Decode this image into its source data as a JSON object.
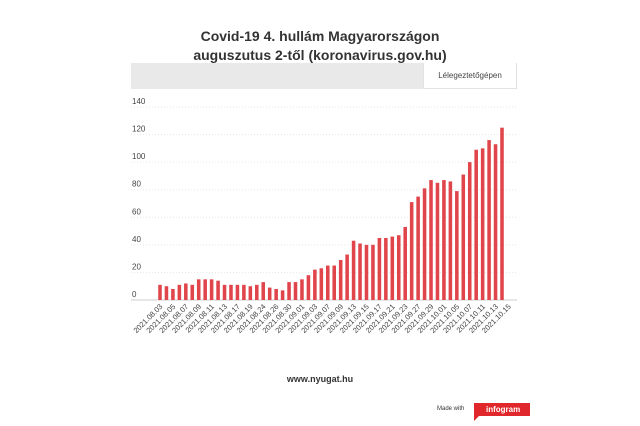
{
  "chart_data": {
    "type": "bar",
    "title": "Covid-19 4. hullám Magyarországon",
    "subtitle": "auguszutus 2-től (koronavirus.gov.hu)",
    "tabs": [
      "Lélegeztetőgépen"
    ],
    "active_tab": "Lélegeztetőgépen",
    "series": [
      {
        "name": "Lélegeztetőgépen",
        "values": [
          11,
          10,
          8,
          11,
          12,
          11,
          15,
          15,
          15,
          14,
          11,
          11,
          11,
          11,
          10,
          11,
          13,
          9,
          8,
          7,
          13,
          13,
          15,
          18,
          22,
          23,
          25,
          25,
          29,
          33,
          43,
          41,
          40,
          40,
          45,
          45,
          46,
          47,
          53,
          71,
          75,
          81,
          87,
          85,
          87,
          86,
          79,
          91,
          100,
          109,
          110,
          116,
          113,
          125
        ]
      }
    ],
    "tick_labels": [
      "2021.08.03",
      "2021.08.05",
      "2021.08.07",
      "2021.08.09",
      "2021.08.11",
      "2021.08.13",
      "2021.08.17",
      "2021.08.19",
      "2021.08.24",
      "2021.08.26",
      "2021.08.30",
      "2021.09.01",
      "2021.09.03",
      "2021.09.07",
      "2021.09.09",
      "2021.09.13",
      "2021.09.15",
      "2021.09.17",
      "2021.09.21",
      "2021.09.23",
      "2021.09.27",
      "2021.09.29",
      "2021.10.01",
      "2021.10.05",
      "2021.10.07",
      "2021.10.11",
      "2021.10.13",
      "2021.10.15"
    ],
    "ylim": [
      0,
      140
    ],
    "y_ticks": [
      0,
      20,
      40,
      60,
      80,
      100,
      120,
      140
    ],
    "grid": true,
    "bar_color": "#e0454b"
  },
  "footer": {
    "source": "www.nyugat.hu",
    "made_with": "Made with",
    "brand": "infogram"
  }
}
